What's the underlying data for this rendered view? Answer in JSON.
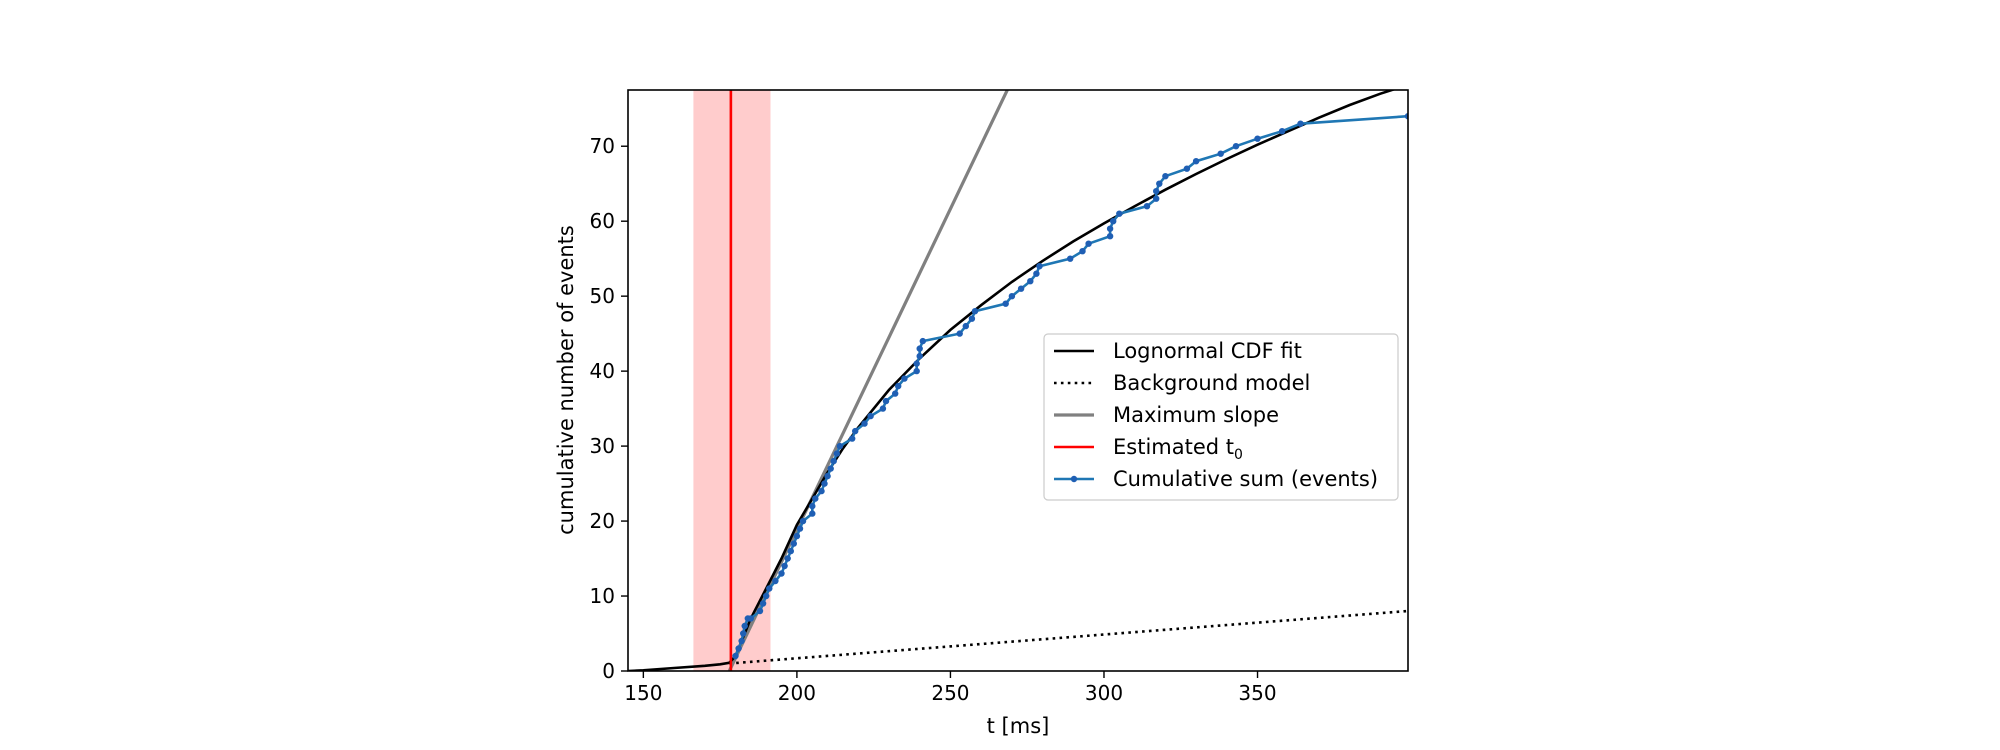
{
  "chart_data": {
    "type": "line",
    "xlabel": "t [ms]",
    "ylabel": "cumulative number of events",
    "xlim": [
      145,
      399
    ],
    "ylim": [
      0,
      77.5
    ],
    "xticks": [
      150,
      200,
      250,
      300,
      350
    ],
    "yticks": [
      0,
      10,
      20,
      30,
      40,
      50,
      60,
      70
    ],
    "grid": false,
    "legend_position": "center-right",
    "colors": {
      "fit": "#000000",
      "background": "#000000",
      "max_slope": "#808080",
      "t0": "#ff0000",
      "t0_band": "#ff9999",
      "events": "#1f77b4"
    },
    "t0_estimate": 178.5,
    "t0_band": [
      166.3,
      191.4
    ],
    "series": [
      {
        "name": "Lognormal CDF fit",
        "style": "solid",
        "points": [
          [
            145,
            0
          ],
          [
            150,
            0.1
          ],
          [
            160,
            0.4
          ],
          [
            170,
            0.7
          ],
          [
            175,
            0.9
          ],
          [
            178,
            1.1
          ],
          [
            180,
            2.0
          ],
          [
            182,
            4.0
          ],
          [
            185,
            7.0
          ],
          [
            190,
            11.0
          ],
          [
            195,
            15.0
          ],
          [
            200,
            19.5
          ],
          [
            205,
            23.0
          ],
          [
            210,
            26.5
          ],
          [
            215,
            29.7
          ],
          [
            220,
            32.5
          ],
          [
            230,
            37.5
          ],
          [
            240,
            41.7
          ],
          [
            250,
            45.5
          ],
          [
            260,
            48.8
          ],
          [
            270,
            51.9
          ],
          [
            280,
            54.7
          ],
          [
            290,
            57.3
          ],
          [
            300,
            59.7
          ],
          [
            310,
            62.0
          ],
          [
            320,
            64.2
          ],
          [
            330,
            66.3
          ],
          [
            340,
            68.3
          ],
          [
            350,
            70.2
          ],
          [
            360,
            72.0
          ],
          [
            370,
            73.8
          ],
          [
            380,
            75.5
          ],
          [
            390,
            77.0
          ],
          [
            399,
            78.2
          ]
        ]
      },
      {
        "name": "Background model",
        "style": "dotted",
        "points": [
          [
            178,
            1.0
          ],
          [
            399,
            8.0
          ]
        ]
      },
      {
        "name": "Maximum slope",
        "style": "solid",
        "points": [
          [
            178,
            0
          ],
          [
            268.5,
            77.5
          ]
        ]
      },
      {
        "name": "Estimated t_0",
        "legend_label": "Estimated t",
        "legend_subscript": "0",
        "style": "vertical"
      },
      {
        "name": "Cumulative sum (events)",
        "style": "line-markers",
        "points": [
          [
            180,
            2
          ],
          [
            181,
            3
          ],
          [
            182,
            4
          ],
          [
            182.5,
            5
          ],
          [
            183,
            6
          ],
          [
            184,
            7
          ],
          [
            185,
            7
          ],
          [
            188,
            8
          ],
          [
            189,
            9
          ],
          [
            190,
            10
          ],
          [
            191,
            11
          ],
          [
            193,
            12
          ],
          [
            195,
            13
          ],
          [
            196,
            14
          ],
          [
            197,
            15
          ],
          [
            198,
            16
          ],
          [
            199,
            17
          ],
          [
            200,
            18
          ],
          [
            201,
            19
          ],
          [
            202,
            20
          ],
          [
            205,
            21
          ],
          [
            205,
            22
          ],
          [
            206,
            23
          ],
          [
            208,
            24
          ],
          [
            209,
            25
          ],
          [
            210,
            26
          ],
          [
            211,
            27
          ],
          [
            212,
            28
          ],
          [
            213,
            29
          ],
          [
            214,
            30
          ],
          [
            218,
            31
          ],
          [
            219,
            32
          ],
          [
            222,
            33
          ],
          [
            224,
            34
          ],
          [
            228,
            35
          ],
          [
            229,
            36
          ],
          [
            232,
            37
          ],
          [
            233,
            38
          ],
          [
            235,
            39
          ],
          [
            239,
            40
          ],
          [
            239,
            41
          ],
          [
            240,
            42
          ],
          [
            240,
            43
          ],
          [
            241,
            44
          ],
          [
            253,
            45
          ],
          [
            255,
            46
          ],
          [
            257,
            47
          ],
          [
            258,
            48
          ],
          [
            268,
            49
          ],
          [
            270,
            50
          ],
          [
            273,
            51
          ],
          [
            276,
            52
          ],
          [
            278,
            53
          ],
          [
            279,
            54
          ],
          [
            289,
            55
          ],
          [
            293,
            56
          ],
          [
            295,
            57
          ],
          [
            302,
            58
          ],
          [
            302,
            59
          ],
          [
            303,
            60
          ],
          [
            305,
            61
          ],
          [
            314,
            62
          ],
          [
            317,
            63
          ],
          [
            317,
            64
          ],
          [
            318,
            65
          ],
          [
            320,
            66
          ],
          [
            327,
            67
          ],
          [
            330,
            68
          ],
          [
            338,
            69
          ],
          [
            343,
            70
          ],
          [
            350,
            71
          ],
          [
            358,
            72
          ],
          [
            364,
            73
          ],
          [
            399,
            74
          ]
        ]
      }
    ]
  }
}
